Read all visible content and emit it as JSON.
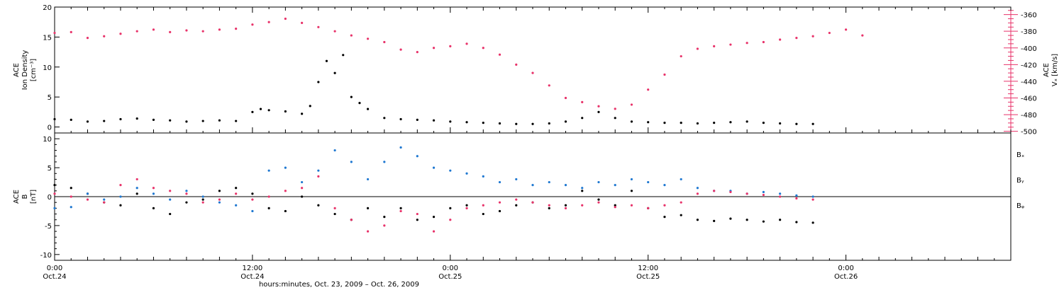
{
  "chart_data": [
    {
      "panel": "density_velocity",
      "type": "scatter",
      "left_axis": {
        "label_lines": [
          "ACE",
          "Ion Density",
          "[cm⁻³]"
        ],
        "ylim": [
          -1,
          20
        ],
        "ticks": [
          "0",
          "5",
          "10",
          "15",
          "20"
        ],
        "color": "#000000"
      },
      "right_axis": {
        "label_lines": [
          "ACE",
          "Vₓ [km/s]"
        ],
        "ylim": [
          -502,
          -351
        ],
        "ticks": [
          "-360",
          "-380",
          "-400",
          "-420",
          "-440",
          "-460",
          "-480",
          "-500"
        ],
        "color": "#e8336a"
      },
      "series": [
        {
          "axis": "left",
          "color": "#000000",
          "points": [
            [
              0,
              1.3
            ],
            [
              1,
              1.2
            ],
            [
              2,
              0.9
            ],
            [
              3,
              1.0
            ],
            [
              4,
              1.3
            ],
            [
              5,
              1.4
            ],
            [
              6,
              1.2
            ],
            [
              7,
              1.1
            ],
            [
              8,
              0.9
            ],
            [
              9,
              1.0
            ],
            [
              10,
              1.1
            ],
            [
              11,
              1.0
            ],
            [
              12,
              2.5
            ],
            [
              12.5,
              3.0
            ],
            [
              13,
              2.8
            ],
            [
              14,
              2.6
            ],
            [
              15,
              2.2
            ],
            [
              15.5,
              3.5
            ],
            [
              16,
              7.5
            ],
            [
              16.5,
              11
            ],
            [
              17,
              9
            ],
            [
              17.5,
              12
            ],
            [
              18,
              5
            ],
            [
              18.5,
              4
            ],
            [
              19,
              3
            ],
            [
              20,
              1.5
            ],
            [
              21,
              1.3
            ],
            [
              22,
              1.2
            ],
            [
              23,
              1.1
            ],
            [
              24,
              0.9
            ],
            [
              25,
              0.8
            ],
            [
              26,
              0.7
            ],
            [
              27,
              0.6
            ],
            [
              28,
              0.5
            ],
            [
              29,
              0.5
            ],
            [
              30,
              0.6
            ],
            [
              31,
              0.9
            ],
            [
              32,
              1.5
            ],
            [
              33,
              2.5
            ],
            [
              34,
              1.5
            ],
            [
              35,
              0.9
            ],
            [
              36,
              0.8
            ],
            [
              37,
              0.7
            ],
            [
              38,
              0.7
            ],
            [
              39,
              0.6
            ],
            [
              40,
              0.7
            ],
            [
              41,
              0.8
            ],
            [
              42,
              0.9
            ],
            [
              43,
              0.7
            ],
            [
              44,
              0.6
            ],
            [
              45,
              0.5
            ],
            [
              46,
              0.5
            ]
          ]
        },
        {
          "axis": "right",
          "color": "#e8336a",
          "points": [
            [
              0,
              -382
            ],
            [
              1,
              -381
            ],
            [
              2,
              -388
            ],
            [
              3,
              -386
            ],
            [
              4,
              -383
            ],
            [
              5,
              -380
            ],
            [
              6,
              -378
            ],
            [
              7,
              -381
            ],
            [
              8,
              -379
            ],
            [
              9,
              -380
            ],
            [
              10,
              -378
            ],
            [
              11,
              -377
            ],
            [
              12,
              -372
            ],
            [
              13,
              -369
            ],
            [
              14,
              -365
            ],
            [
              15,
              -370
            ],
            [
              16,
              -375
            ],
            [
              17,
              -380
            ],
            [
              18,
              -385
            ],
            [
              19,
              -389
            ],
            [
              20,
              -393
            ],
            [
              21,
              -402
            ],
            [
              22,
              -405
            ],
            [
              23,
              -400
            ],
            [
              24,
              -398
            ],
            [
              25,
              -395
            ],
            [
              26,
              -400
            ],
            [
              27,
              -408
            ],
            [
              28,
              -420
            ],
            [
              29,
              -430
            ],
            [
              30,
              -445
            ],
            [
              31,
              -460
            ],
            [
              32,
              -465
            ],
            [
              33,
              -470
            ],
            [
              34,
              -473
            ],
            [
              35,
              -468
            ],
            [
              36,
              -450
            ],
            [
              37,
              -432
            ],
            [
              38,
              -410
            ],
            [
              39,
              -401
            ],
            [
              40,
              -398
            ],
            [
              41,
              -396
            ],
            [
              42,
              -394
            ],
            [
              43,
              -393
            ],
            [
              44,
              -390
            ],
            [
              45,
              -388
            ],
            [
              46,
              -386
            ],
            [
              47,
              -382
            ],
            [
              48,
              -378
            ],
            [
              49,
              -385
            ]
          ]
        }
      ]
    },
    {
      "panel": "magnetic_field",
      "type": "scatter",
      "left_axis": {
        "label_lines": [
          "ACE",
          "B",
          "[nT]"
        ],
        "ylim": [
          -11,
          11
        ],
        "ticks": [
          "10",
          "5",
          "0",
          "-5",
          "-10"
        ],
        "color": "#000000"
      },
      "legend": [
        "Bₓ",
        "Bᵧ",
        "Bᵩ"
      ],
      "legend_placement": "right",
      "series": [
        {
          "name": "Bₓ",
          "color": "#000000",
          "points": [
            [
              0,
              2.0
            ],
            [
              1,
              1.5
            ],
            [
              2,
              0.5
            ],
            [
              3,
              -1.0
            ],
            [
              4,
              -1.5
            ],
            [
              5,
              0.5
            ],
            [
              6,
              -2.0
            ],
            [
              7,
              -3.0
            ],
            [
              8,
              -1.0
            ],
            [
              9,
              -0.5
            ],
            [
              10,
              1.0
            ],
            [
              11,
              1.5
            ],
            [
              12,
              0.5
            ],
            [
              13,
              -2.0
            ],
            [
              14,
              -2.5
            ],
            [
              15,
              0.0
            ],
            [
              16,
              -1.5
            ],
            [
              17,
              -3.0
            ],
            [
              18,
              -4.0
            ],
            [
              19,
              -2.0
            ],
            [
              20,
              -3.5
            ],
            [
              21,
              -2.0
            ],
            [
              22,
              -4.0
            ],
            [
              23,
              -3.5
            ],
            [
              24,
              -2.0
            ],
            [
              25,
              -1.5
            ],
            [
              26,
              -3.0
            ],
            [
              27,
              -2.5
            ],
            [
              28,
              -1.5
            ],
            [
              29,
              -1.0
            ],
            [
              30,
              -2.0
            ],
            [
              31,
              -1.5
            ],
            [
              32,
              1.0
            ],
            [
              33,
              -0.5
            ],
            [
              34,
              -1.5
            ],
            [
              35,
              1.0
            ],
            [
              36,
              -2.0
            ],
            [
              37,
              -3.5
            ],
            [
              38,
              -3.2
            ],
            [
              39,
              -4.0
            ],
            [
              40,
              -4.2
            ],
            [
              41,
              -3.8
            ],
            [
              42,
              -4.0
            ],
            [
              43,
              -4.3
            ],
            [
              44,
              -4.0
            ],
            [
              45,
              -4.4
            ],
            [
              46,
              -4.5
            ]
          ]
        },
        {
          "name": "Bᵧ",
          "color": "#1f78d1",
          "points": [
            [
              0,
              -2.0
            ],
            [
              1,
              -1.8
            ],
            [
              2,
              0.5
            ],
            [
              3,
              -0.5
            ],
            [
              4,
              0.0
            ],
            [
              5,
              1.5
            ],
            [
              6,
              0.5
            ],
            [
              7,
              -0.5
            ],
            [
              8,
              1.0
            ],
            [
              9,
              0.0
            ],
            [
              10,
              -1.0
            ],
            [
              11,
              -1.5
            ],
            [
              12,
              -2.5
            ],
            [
              13,
              4.5
            ],
            [
              14,
              5.0
            ],
            [
              15,
              2.5
            ],
            [
              16,
              4.5
            ],
            [
              17,
              8.0
            ],
            [
              18,
              6.0
            ],
            [
              19,
              3.0
            ],
            [
              20,
              6.0
            ],
            [
              21,
              8.5
            ],
            [
              22,
              7.0
            ],
            [
              23,
              5.0
            ],
            [
              24,
              4.5
            ],
            [
              25,
              4.0
            ],
            [
              26,
              3.5
            ],
            [
              27,
              2.5
            ],
            [
              28,
              3.0
            ],
            [
              29,
              2.0
            ],
            [
              30,
              2.5
            ],
            [
              31,
              2.0
            ],
            [
              32,
              1.5
            ],
            [
              33,
              2.5
            ],
            [
              34,
              2.0
            ],
            [
              35,
              3.0
            ],
            [
              36,
              2.5
            ],
            [
              37,
              2.0
            ],
            [
              38,
              3.0
            ],
            [
              39,
              1.5
            ],
            [
              40,
              1.0
            ],
            [
              41,
              1.0
            ],
            [
              42,
              0.5
            ],
            [
              43,
              0.8
            ],
            [
              44,
              0.5
            ],
            [
              45,
              0.2
            ],
            [
              46,
              0.0
            ]
          ]
        },
        {
          "name": "Bᵩ",
          "color": "#e8336a",
          "points": [
            [
              0,
              0.5
            ],
            [
              1,
              0.0
            ],
            [
              2,
              -0.5
            ],
            [
              3,
              -1.0
            ],
            [
              4,
              2.0
            ],
            [
              5,
              3.0
            ],
            [
              6,
              1.5
            ],
            [
              7,
              1.0
            ],
            [
              8,
              0.5
            ],
            [
              9,
              -1.0
            ],
            [
              10,
              -0.5
            ],
            [
              11,
              0.5
            ],
            [
              12,
              -0.5
            ],
            [
              13,
              0.0
            ],
            [
              14,
              1.0
            ],
            [
              15,
              1.5
            ],
            [
              16,
              3.5
            ],
            [
              17,
              -2.0
            ],
            [
              18,
              -4.0
            ],
            [
              19,
              -6.0
            ],
            [
              20,
              -5.0
            ],
            [
              21,
              -2.5
            ],
            [
              22,
              -3.0
            ],
            [
              23,
              -6.0
            ],
            [
              24,
              -4.0
            ],
            [
              25,
              -2.0
            ],
            [
              26,
              -1.5
            ],
            [
              27,
              -1.0
            ],
            [
              28,
              -0.5
            ],
            [
              29,
              -1.0
            ],
            [
              30,
              -1.5
            ],
            [
              31,
              -2.0
            ],
            [
              32,
              -1.5
            ],
            [
              33,
              -1.0
            ],
            [
              34,
              -1.8
            ],
            [
              35,
              -1.5
            ],
            [
              36,
              -2.0
            ],
            [
              37,
              -1.5
            ],
            [
              38,
              -1.0
            ],
            [
              39,
              0.5
            ],
            [
              40,
              1.0
            ],
            [
              41,
              0.8
            ],
            [
              42,
              0.5
            ],
            [
              43,
              0.3
            ],
            [
              44,
              0.0
            ],
            [
              45,
              -0.3
            ],
            [
              46,
              -0.5
            ]
          ]
        }
      ]
    }
  ],
  "x_axis": {
    "xlim": [
      0,
      58
    ],
    "tick_labels": [
      {
        "x": 0,
        "time": "0:00",
        "date": "Oct.24"
      },
      {
        "x": 12,
        "time": "12:00",
        "date": "Oct.24"
      },
      {
        "x": 24,
        "time": "0:00",
        "date": "Oct.25"
      },
      {
        "x": 36,
        "time": "12:00",
        "date": "Oct.25"
      },
      {
        "x": 48,
        "time": "0:00",
        "date": "Oct.26"
      }
    ],
    "title": "hours:minutes, Oct. 23, 2009 – Oct. 26, 2009"
  }
}
